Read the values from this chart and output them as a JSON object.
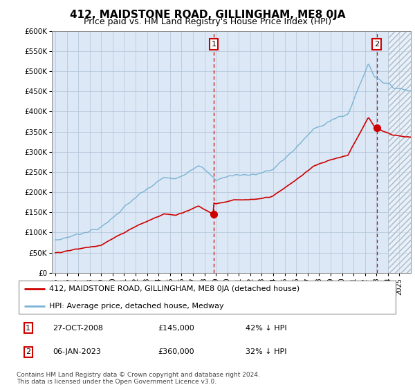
{
  "title": "412, MAIDSTONE ROAD, GILLINGHAM, ME8 0JA",
  "subtitle": "Price paid vs. HM Land Registry's House Price Index (HPI)",
  "footer": "Contains HM Land Registry data © Crown copyright and database right 2024.\nThis data is licensed under the Open Government Licence v3.0.",
  "legend_line1": "412, MAIDSTONE ROAD, GILLINGHAM, ME8 0JA (detached house)",
  "legend_line2": "HPI: Average price, detached house, Medway",
  "annotation1_date": "27-OCT-2008",
  "annotation1_price": "£145,000",
  "annotation1_hpi": "42% ↓ HPI",
  "annotation2_date": "06-JAN-2023",
  "annotation2_price": "£360,000",
  "annotation2_hpi": "32% ↓ HPI",
  "sale1_x": 2008.82,
  "sale1_y": 145000,
  "sale2_x": 2023.02,
  "sale2_y": 360000,
  "ylim": [
    0,
    600000
  ],
  "xlim_start": 1994.7,
  "xlim_end": 2026.0,
  "hatch_start": 2024.0,
  "hpi_color": "#7ab3d4",
  "sale_color": "#cc0000",
  "plot_bg_color": "#dce8f5",
  "grid_color": "#b0c4d8",
  "title_fontsize": 11,
  "subtitle_fontsize": 9,
  "tick_fontsize": 7.5,
  "legend_fontsize": 8,
  "footer_fontsize": 6.5
}
